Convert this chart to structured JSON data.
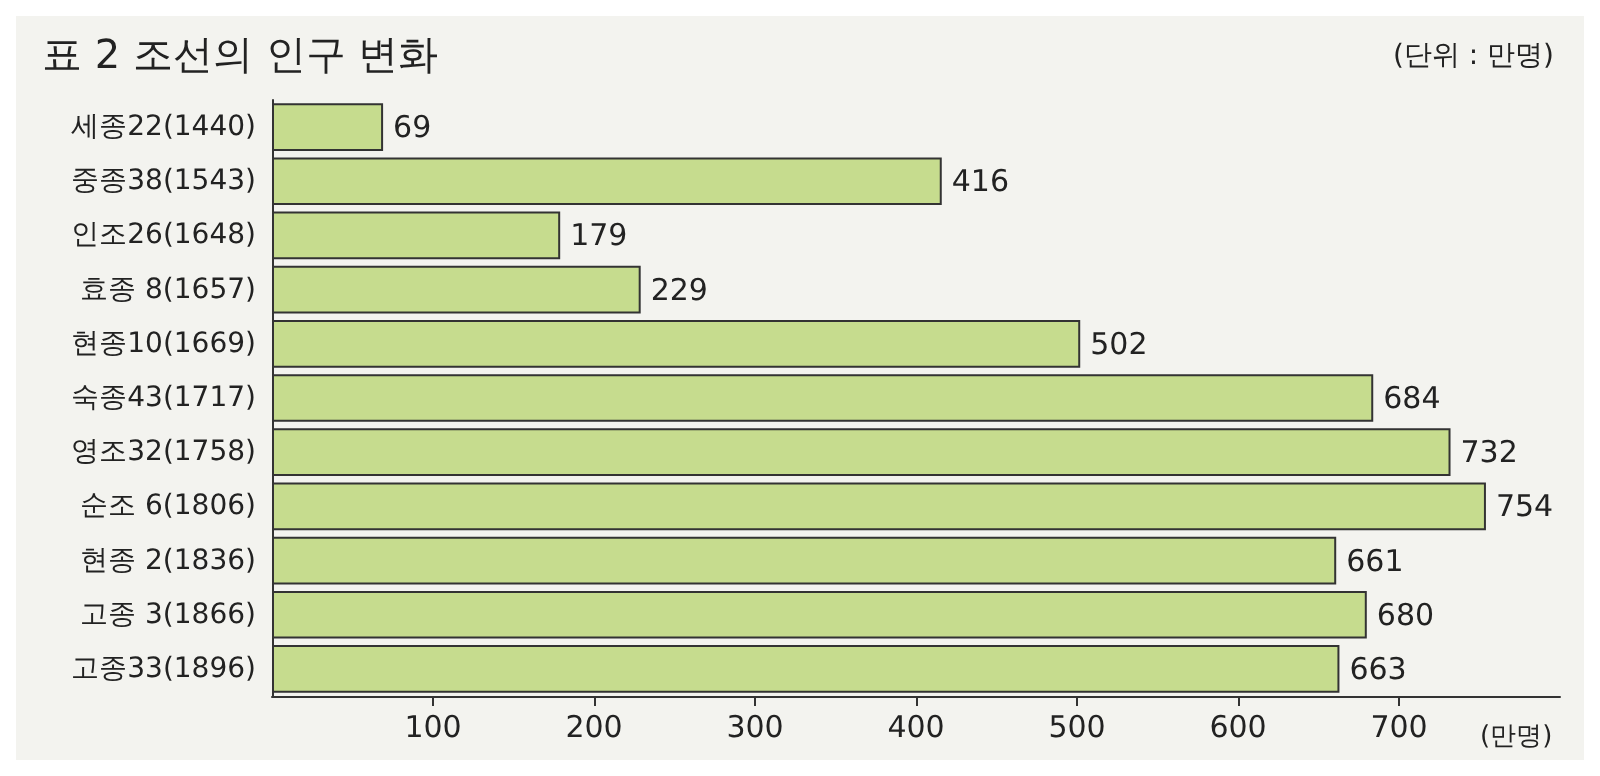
{
  "chart_data": {
    "type": "bar",
    "orientation": "horizontal",
    "title": "표 2 조선의 인구 변화",
    "subtitle": "(단위 : 만명)",
    "xlabel": "(만명)",
    "categories": [
      "세종22(1440)",
      "중종38(1543)",
      "인조26(1648)",
      "효종 8(1657)",
      "현종10(1669)",
      "숙종43(1717)",
      "영조32(1758)",
      "순조 6(1806)",
      "현종 2(1836)",
      "고종 3(1866)",
      "고종33(1896)"
    ],
    "values": [
      69,
      416,
      179,
      229,
      502,
      684,
      732,
      754,
      661,
      680,
      663
    ],
    "color": "#c6dc8e",
    "data_labels": true,
    "grid": false,
    "xlim": [
      0,
      800
    ],
    "xticks": [
      100,
      200,
      300,
      400,
      500,
      600,
      700
    ]
  }
}
